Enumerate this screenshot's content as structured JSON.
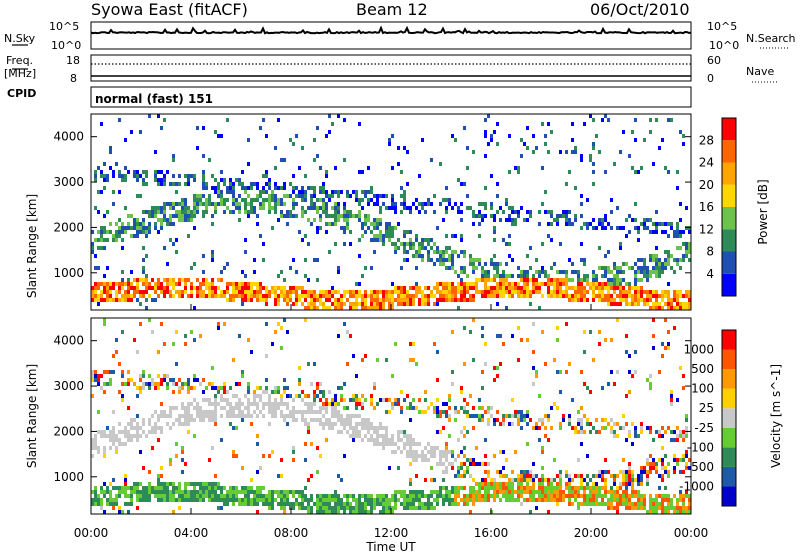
{
  "header": {
    "title": "Syowa East (fitACF)",
    "beam": "Beam 12",
    "date": "06/Oct/2010"
  },
  "strips": {
    "nsky_label": "N.Sky",
    "nsearch_label": "N.Search",
    "nsky_ticks": [
      "10^5",
      "10^0"
    ],
    "nsearch_ticks": [
      "10^5",
      "10^0"
    ],
    "freq_label": "Freq.",
    "freq_unit": "[MHz]",
    "freq_ticks": [
      "18",
      "8"
    ],
    "nave_label": "Nave",
    "nave_ticks": [
      "60",
      "0"
    ],
    "cpid_label": "CPID",
    "cpid_value": "normal (fast) 151"
  },
  "chart_data": [
    {
      "type": "heatmap",
      "panel": "power",
      "ylabel": "Slant Range [km]",
      "yticks": [
        "4000",
        "3000",
        "2000",
        "1000"
      ],
      "ylim": [
        180,
        4500
      ],
      "xlim": [
        0,
        24
      ],
      "colorbar_label": "Power [dB]",
      "colorbar_ticks": [
        "28",
        "24",
        "20",
        "16",
        "12",
        "8",
        "4"
      ],
      "colors": [
        "#0000ff",
        "#1f4fb0",
        "#2e8b57",
        "#6cc24a",
        "#ffd700",
        "#ffa500",
        "#ff6600",
        "#ff0000"
      ]
    },
    {
      "type": "heatmap",
      "panel": "velocity",
      "ylabel": "Slant Range [km]",
      "yticks": [
        "4000",
        "3000",
        "2000",
        "1000"
      ],
      "ylim": [
        180,
        4500
      ],
      "xlim": [
        0,
        24
      ],
      "colorbar_label": "Velocity [m s^-1]",
      "colorbar_ticks": [
        "1000",
        "500",
        "100",
        "25",
        "-25",
        "-100",
        "-500",
        "-1000"
      ],
      "colors": [
        "#0000cc",
        "#1f5aa8",
        "#2e8b57",
        "#66cc33",
        "#c8c8c8",
        "#ffd000",
        "#ff9900",
        "#ff5500",
        "#ff0000"
      ]
    }
  ],
  "xaxis": {
    "label": "Time UT",
    "ticks": [
      "00:00",
      "04:00",
      "08:00",
      "12:00",
      "16:00",
      "20:00",
      "00:00"
    ]
  }
}
